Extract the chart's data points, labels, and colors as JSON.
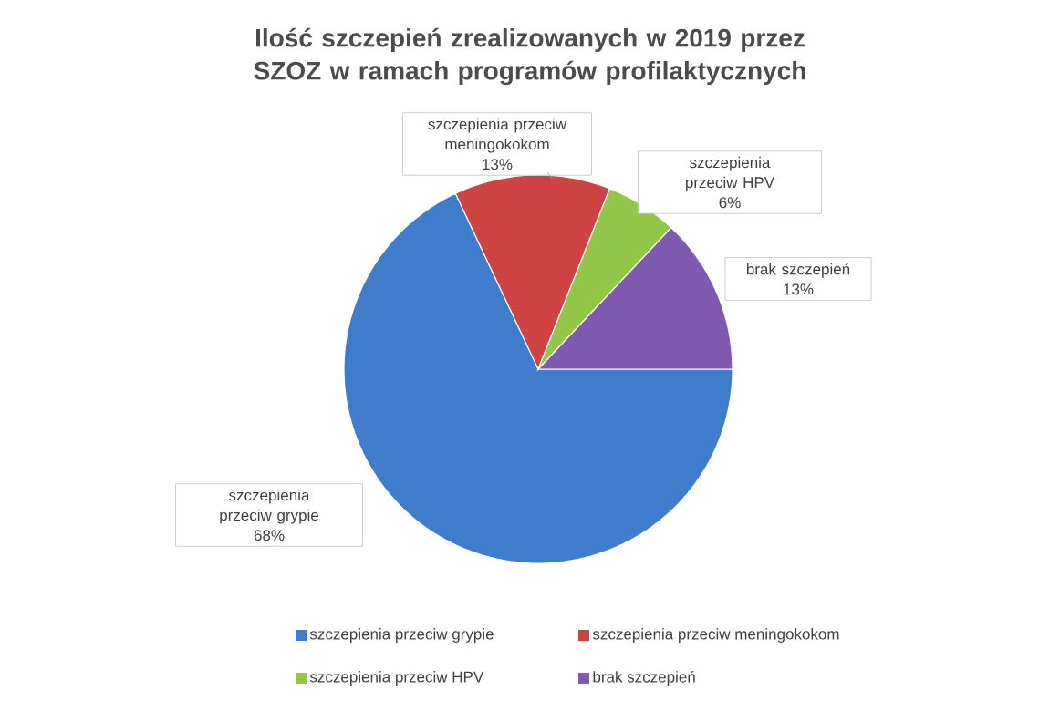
{
  "chart_data": {
    "type": "pie",
    "title": "Ilość szczepień zrealizowanych w 2019 przez SZOZ w ramach programów profilaktycznych",
    "categories": [
      "szczepienia przeciw grypie",
      "szczepienia przeciw meningokokom",
      "szczepienia przeciw HPV",
      "brak szczepień"
    ],
    "values": [
      68,
      13,
      6,
      13
    ],
    "value_labels": [
      "68%",
      "13%",
      "6%",
      "13%"
    ],
    "colors": [
      "#3f7ccc",
      "#d04343",
      "#92c748",
      "#8059b0"
    ],
    "legend": "bottom"
  }
}
